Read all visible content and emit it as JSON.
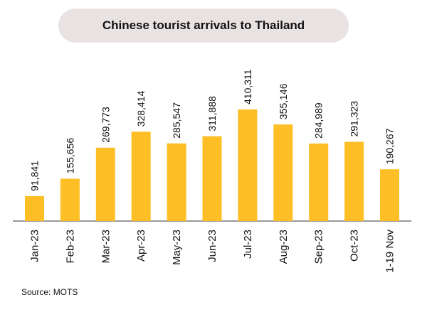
{
  "title": "Chinese tourist arrivals to Thailand",
  "source": "Source: MOTS",
  "colors": {
    "bar": "#FDBF25",
    "axis": "#333333",
    "title_bg": "#E9E2E2"
  },
  "chart_data": {
    "type": "bar",
    "categories": [
      "Jan-23",
      "Feb-23",
      "Mar-23",
      "Apr-23",
      "May-23",
      "Jun-23",
      "Jul-23",
      "Aug-23",
      "Sep-23",
      "Oct-23",
      "1-19 Nov"
    ],
    "values": [
      91841,
      155656,
      269773,
      328414,
      285547,
      311888,
      410311,
      355146,
      284989,
      291323,
      190267
    ],
    "data_labels": [
      "91,841",
      "155,656",
      "269,773",
      "328,414",
      "285,547",
      "311,888",
      "410,311",
      "355,146",
      "284,989",
      "291,323",
      "190,267"
    ],
    "title": "Chinese tourist arrivals to Thailand",
    "xlabel": "",
    "ylabel": "",
    "ylim": [
      0,
      410311
    ],
    "grid": false,
    "legend": "none"
  }
}
